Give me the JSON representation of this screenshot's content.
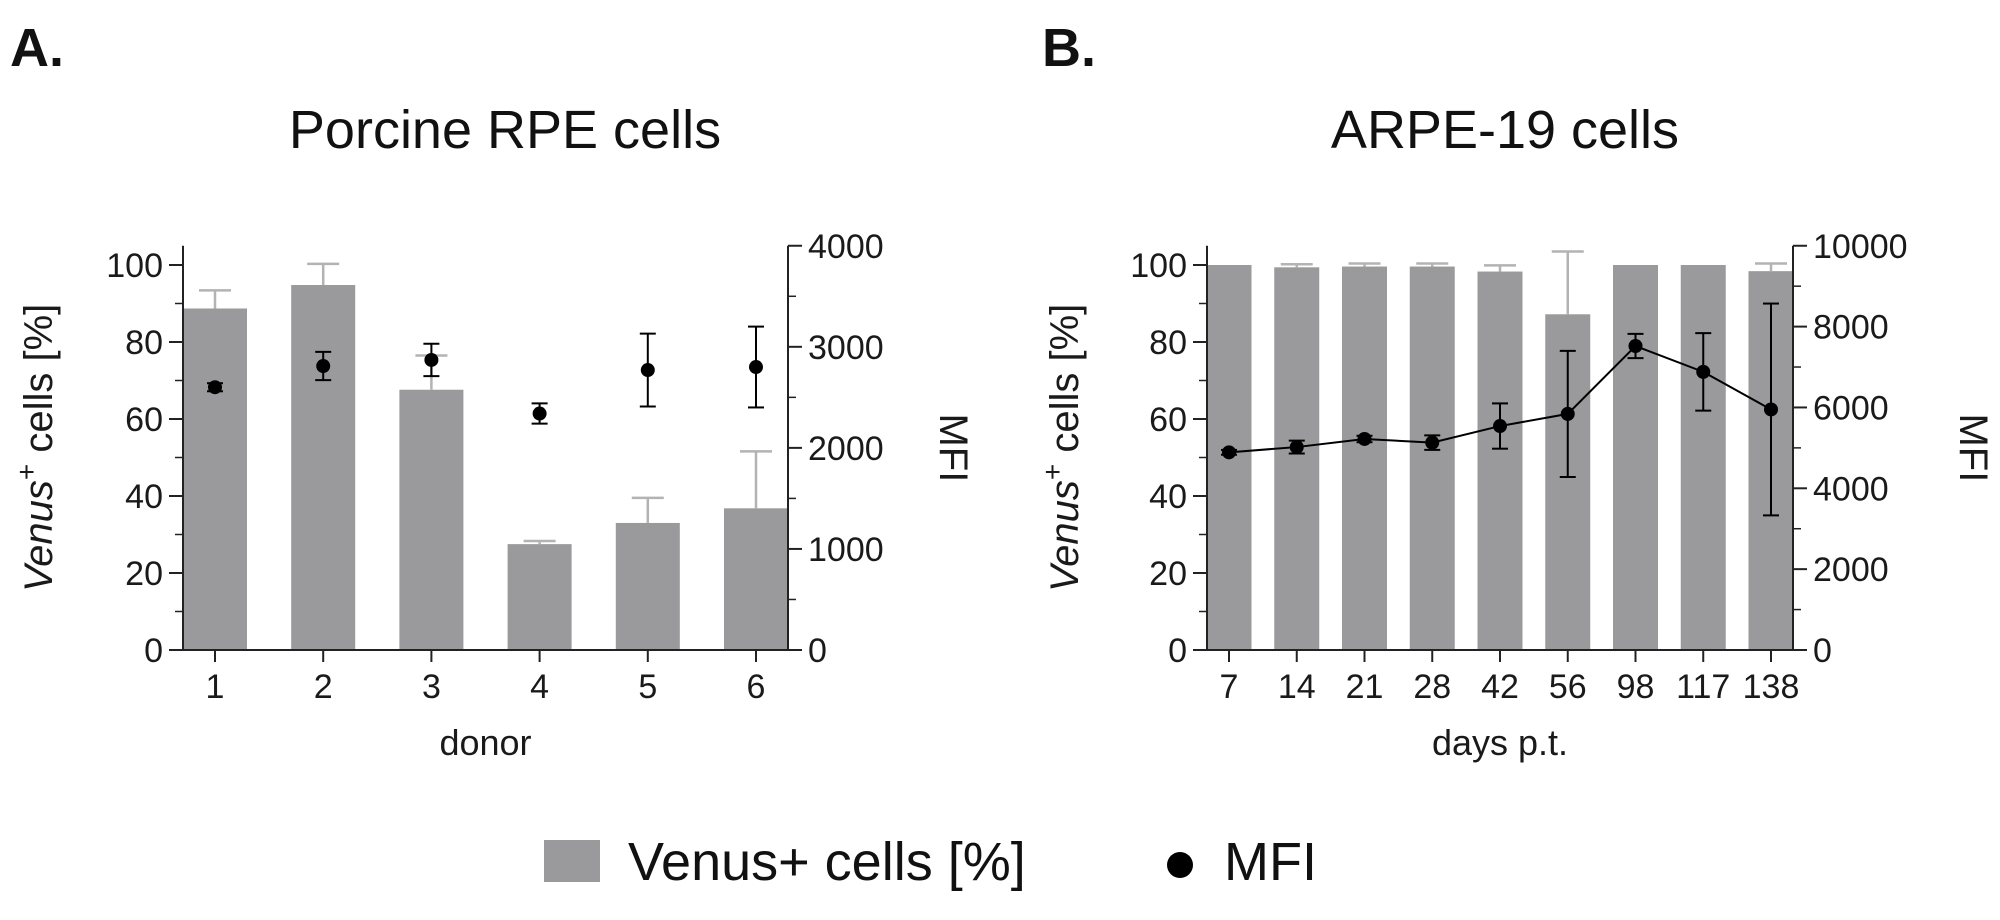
{
  "colors": {
    "bar": "#9a999b",
    "bar_error": "#b3b3b3",
    "mfi": "#000000",
    "axis": "#222222"
  },
  "legend": {
    "bar_label": "Venus+ cells [%]",
    "point_label": "MFI"
  },
  "chart_data": [
    {
      "id": "A",
      "panel_label": "A.",
      "type": "bar",
      "title": "Porcine RPE cells",
      "xlabel": "donor",
      "ylabel_italic": "Venus",
      "ylabel_sup": "+",
      "ylabel_rest": " cells [%]",
      "y2label": "MFI",
      "ylim": [
        0,
        105
      ],
      "yticks": [
        0,
        20,
        40,
        60,
        80,
        100
      ],
      "y2lim": [
        0,
        4000
      ],
      "y2ticks": [
        0,
        1000,
        2000,
        3000,
        4000
      ],
      "categories": [
        "1",
        "2",
        "3",
        "4",
        "5",
        "6"
      ],
      "series": [
        {
          "name": "Venus+ cells [%]",
          "kind": "bar",
          "axis": "left",
          "values": [
            88.7,
            94.8,
            67.6,
            27.5,
            33.0,
            36.8
          ],
          "errors": [
            4.7,
            5.5,
            8.9,
            0.8,
            6.5,
            14.8
          ]
        },
        {
          "name": "MFI",
          "kind": "point",
          "axis": "right",
          "connected": false,
          "values": [
            2600,
            2810,
            2870,
            2340,
            2770,
            2800
          ],
          "errors": [
            40,
            140,
            160,
            100,
            360,
            400
          ]
        }
      ]
    },
    {
      "id": "B",
      "panel_label": "B.",
      "type": "bar",
      "title": "ARPE-19 cells",
      "xlabel": "days p.t.",
      "ylabel_italic": "Venus",
      "ylabel_sup": "+",
      "ylabel_rest": " cells [%]",
      "y2label": "MFI",
      "ylim": [
        0,
        105
      ],
      "yticks": [
        0,
        20,
        40,
        60,
        80,
        100
      ],
      "y2lim": [
        0,
        10000
      ],
      "y2ticks": [
        0,
        2000,
        4000,
        6000,
        8000,
        10000
      ],
      "categories": [
        "7",
        "14",
        "21",
        "28",
        "42",
        "56",
        "98",
        "117",
        "138"
      ],
      "series": [
        {
          "name": "Venus+ cells [%]",
          "kind": "bar",
          "axis": "left",
          "values": [
            100,
            99.4,
            99.6,
            99.6,
            98.3,
            87.2,
            100,
            100,
            98.4
          ],
          "errors": [
            0,
            0.8,
            0.8,
            0.8,
            1.6,
            16.3,
            0,
            0,
            2.0
          ]
        },
        {
          "name": "MFI",
          "kind": "point",
          "axis": "right",
          "connected": true,
          "values": [
            4890,
            5020,
            5220,
            5130,
            5540,
            5840,
            7520,
            6880,
            5950
          ],
          "errors": [
            60,
            160,
            80,
            180,
            560,
            1560,
            300,
            960,
            2620
          ]
        }
      ]
    }
  ]
}
